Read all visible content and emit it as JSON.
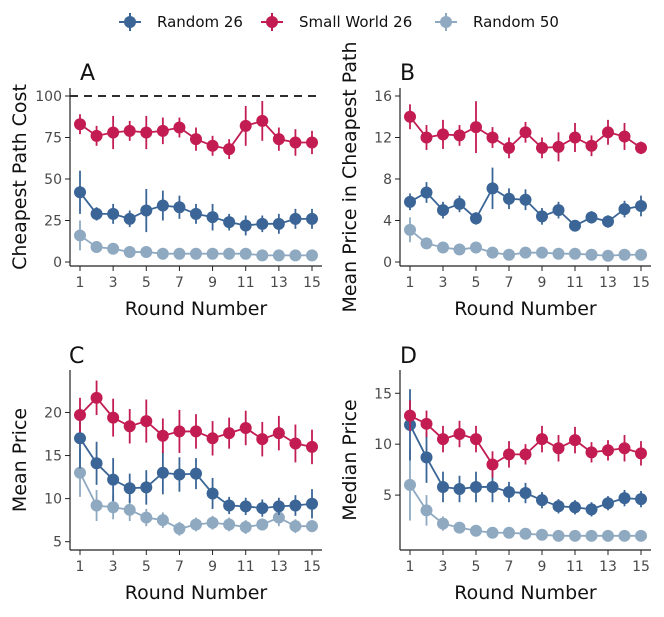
{
  "figure": {
    "legend": [
      {
        "name": "Random 26",
        "color": "#3a6596"
      },
      {
        "name": "Small World 26",
        "color": "#c21c52"
      },
      {
        "name": "Random 50",
        "color": "#8fa9c1"
      }
    ]
  },
  "chart_data": [
    {
      "type": "line",
      "panel": "A",
      "title": "",
      "xlabel": "Round Number",
      "ylabel": "Cheapest Path Cost",
      "x": [
        1,
        2,
        3,
        4,
        5,
        6,
        7,
        8,
        9,
        10,
        11,
        12,
        13,
        14,
        15
      ],
      "xticks": [
        1,
        3,
        5,
        7,
        9,
        11,
        13,
        15
      ],
      "ylim": [
        0,
        100
      ],
      "yticks": [
        0,
        25,
        50,
        75,
        100
      ],
      "reference_line": {
        "y": 100,
        "style": "dashed"
      },
      "series": [
        {
          "name": "Random 26",
          "values": [
            42,
            29,
            29,
            26,
            31,
            34,
            33,
            29,
            27,
            24,
            22,
            23,
            23,
            26,
            26
          ],
          "err": [
            13,
            4,
            6,
            5,
            13,
            9,
            7,
            6,
            8,
            5,
            6,
            5,
            6,
            6,
            6
          ]
        },
        {
          "name": "Small World 26",
          "values": [
            83,
            76,
            78,
            79,
            78,
            79,
            81,
            74,
            70,
            68,
            82,
            85,
            74,
            72,
            72
          ],
          "err": [
            6,
            6,
            10,
            6,
            10,
            8,
            6,
            7,
            6,
            6,
            12,
            12,
            7,
            8,
            7
          ]
        },
        {
          "name": "Random 50",
          "values": [
            16,
            9,
            8,
            6,
            6,
            5,
            5,
            5,
            5,
            5,
            5,
            4,
            4,
            4,
            4
          ],
          "err": [
            9,
            2,
            3,
            2,
            2,
            2,
            1,
            1,
            1,
            1,
            1,
            1,
            1,
            1,
            1
          ]
        }
      ]
    },
    {
      "type": "line",
      "panel": "B",
      "title": "",
      "xlabel": "Round Number",
      "ylabel": "Mean Price in Cheapest Path",
      "x": [
        1,
        2,
        3,
        4,
        5,
        6,
        7,
        8,
        9,
        10,
        11,
        12,
        13,
        14,
        15
      ],
      "xticks": [
        1,
        3,
        5,
        7,
        9,
        11,
        13,
        15
      ],
      "ylim": [
        0,
        16
      ],
      "yticks": [
        0,
        4,
        8,
        12,
        16
      ],
      "series": [
        {
          "name": "Random 26",
          "values": [
            5.8,
            6.7,
            5.0,
            5.6,
            4.2,
            7.1,
            6.1,
            6.0,
            4.4,
            5.0,
            3.5,
            4.3,
            3.9,
            5.1,
            5.4
          ],
          "err": [
            0.8,
            1.0,
            0.8,
            0.8,
            0.6,
            2.0,
            1.0,
            1.0,
            0.8,
            0.8,
            0.5,
            0.6,
            0.6,
            0.8,
            1.0
          ]
        },
        {
          "name": "Small World 26",
          "values": [
            14.0,
            12.0,
            12.3,
            12.2,
            13.0,
            12.0,
            11.0,
            12.5,
            11.0,
            11.1,
            12.0,
            11.2,
            12.5,
            12.1,
            11.0
          ],
          "err": [
            1.2,
            1.2,
            1.4,
            1.0,
            2.5,
            1.0,
            1.0,
            1.0,
            1.0,
            1.4,
            1.4,
            1.0,
            1.2,
            1.3,
            0.6
          ]
        },
        {
          "name": "Random 50",
          "values": [
            3.1,
            1.8,
            1.4,
            1.2,
            1.4,
            0.9,
            0.7,
            0.9,
            0.9,
            0.8,
            0.8,
            0.7,
            0.6,
            0.7,
            0.7
          ],
          "err": [
            1.2,
            0.5,
            0.4,
            0.3,
            0.4,
            0.2,
            0.3,
            0.3,
            0.3,
            0.2,
            0.2,
            0.2,
            0.2,
            0.2,
            0.2
          ]
        }
      ]
    },
    {
      "type": "line",
      "panel": "C",
      "title": "",
      "xlabel": "Round Number",
      "ylabel": "Mean Price",
      "x": [
        1,
        2,
        3,
        4,
        5,
        6,
        7,
        8,
        9,
        10,
        11,
        12,
        13,
        14,
        15
      ],
      "xticks": [
        1,
        3,
        5,
        7,
        9,
        11,
        13,
        15
      ],
      "ylim": [
        4.5,
        24
      ],
      "yticks": [
        5,
        10,
        15,
        20
      ],
      "series": [
        {
          "name": "Random 26",
          "values": [
            17.0,
            14.1,
            12.2,
            11.2,
            11.3,
            13.0,
            12.8,
            12.9,
            10.6,
            9.2,
            9.1,
            8.9,
            9.1,
            9.2,
            9.4
          ],
          "err": [
            3.5,
            2.5,
            2.5,
            1.7,
            2.0,
            2.5,
            2.0,
            1.8,
            1.8,
            1.0,
            1.0,
            1.0,
            1.0,
            1.2,
            1.7
          ]
        },
        {
          "name": "Small World 26",
          "values": [
            19.7,
            21.7,
            19.4,
            18.4,
            19.0,
            17.3,
            17.8,
            17.8,
            17.0,
            17.6,
            18.2,
            16.9,
            17.6,
            16.4,
            16.0
          ],
          "err": [
            2.0,
            2.0,
            2.2,
            2.0,
            2.5,
            2.0,
            2.5,
            2.0,
            2.0,
            1.8,
            2.0,
            2.0,
            2.0,
            2.2,
            2.0
          ]
        },
        {
          "name": "Random 50",
          "values": [
            13.0,
            9.2,
            9.0,
            8.7,
            7.8,
            7.5,
            6.5,
            7.0,
            7.2,
            7.0,
            6.7,
            7.0,
            7.8,
            6.8,
            6.8
          ],
          "err": [
            2.8,
            1.8,
            1.4,
            1.3,
            1.0,
            0.9,
            0.8,
            0.8,
            0.8,
            0.8,
            0.8,
            0.7,
            1.0,
            0.8,
            0.7
          ]
        }
      ]
    },
    {
      "type": "line",
      "panel": "D",
      "title": "",
      "xlabel": "Round Number",
      "ylabel": "Median Price",
      "x": [
        1,
        2,
        3,
        4,
        5,
        6,
        7,
        8,
        9,
        10,
        11,
        12,
        13,
        14,
        15
      ],
      "xticks": [
        1,
        3,
        5,
        7,
        9,
        11,
        13,
        15
      ],
      "ylim": [
        0,
        16.5
      ],
      "yticks": [
        5,
        10,
        15
      ],
      "series": [
        {
          "name": "Random 26",
          "values": [
            11.9,
            8.7,
            5.8,
            5.6,
            5.8,
            5.8,
            5.3,
            5.2,
            4.5,
            3.9,
            3.8,
            3.6,
            4.2,
            4.7,
            4.6
          ],
          "err": [
            3.5,
            2.5,
            1.5,
            1.3,
            1.5,
            1.5,
            1.0,
            1.0,
            0.8,
            0.7,
            0.7,
            0.7,
            0.7,
            0.8,
            0.8
          ]
        },
        {
          "name": "Small World 26",
          "values": [
            12.8,
            12.0,
            10.5,
            11.0,
            10.5,
            8.0,
            9.0,
            9.0,
            10.5,
            9.6,
            10.4,
            9.2,
            9.4,
            9.6,
            9.1
          ],
          "err": [
            1.5,
            1.3,
            1.3,
            1.3,
            1.3,
            1.3,
            1.3,
            1.0,
            1.3,
            1.3,
            1.3,
            1.0,
            1.0,
            1.3,
            1.2
          ]
        },
        {
          "name": "Random 50",
          "values": [
            6.0,
            3.5,
            2.2,
            1.8,
            1.5,
            1.3,
            1.3,
            1.2,
            1.1,
            1.0,
            1.0,
            1.0,
            1.0,
            1.0,
            1.0
          ],
          "err": [
            3.5,
            1.5,
            0.7,
            0.5,
            0.3,
            0.2,
            0.2,
            0.2,
            0.2,
            0.2,
            0.2,
            0.2,
            0.2,
            0.2,
            0.2
          ]
        }
      ]
    }
  ]
}
